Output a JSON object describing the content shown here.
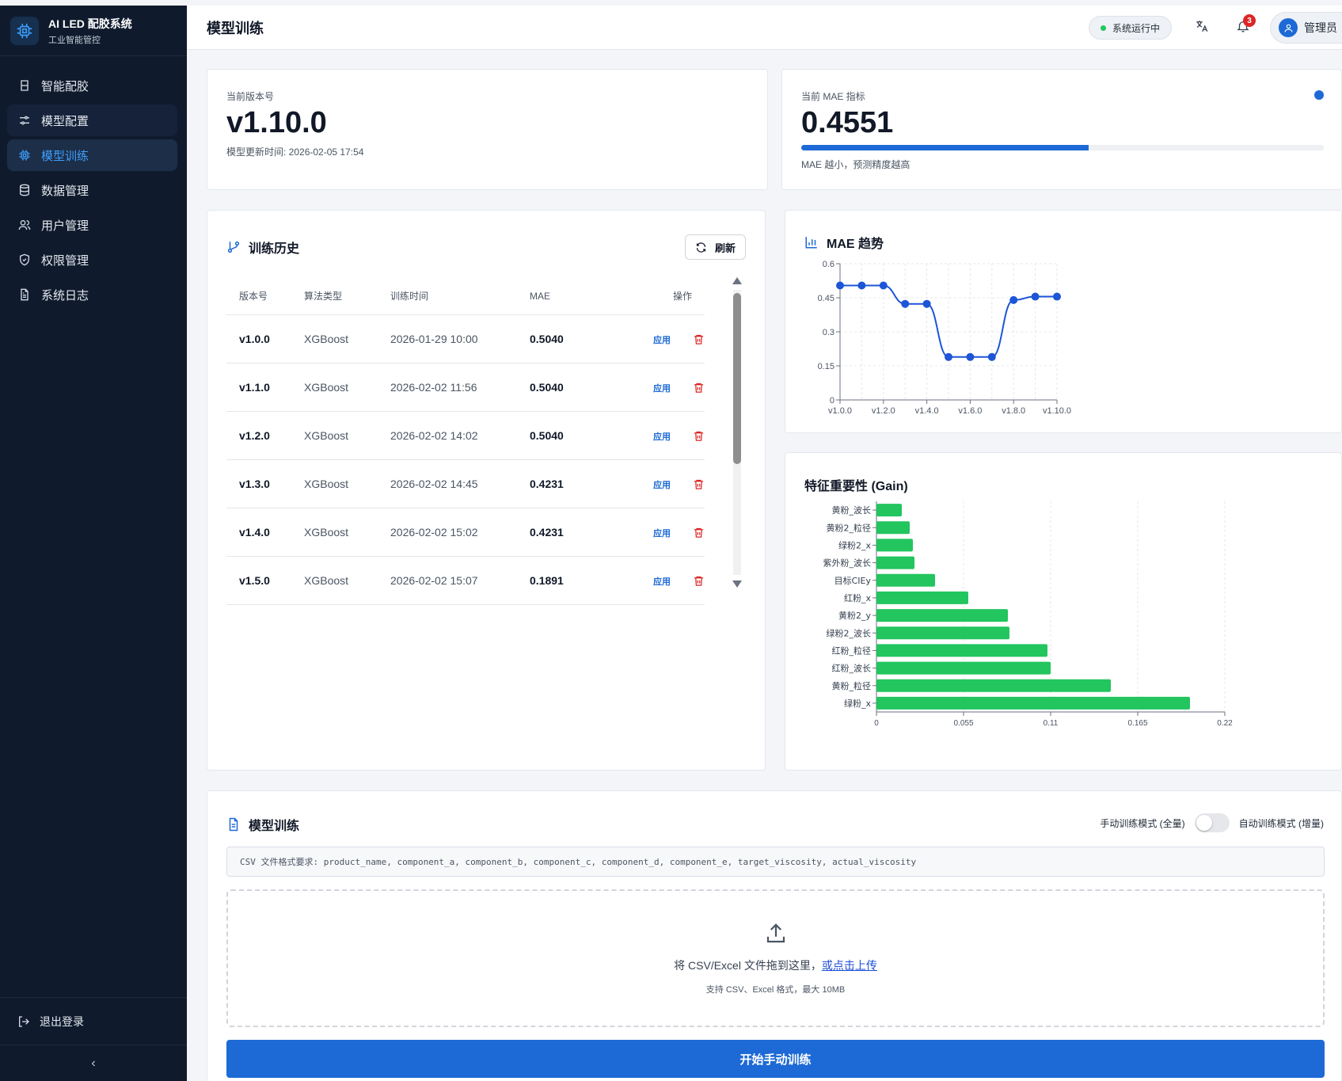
{
  "app": {
    "title": "AI LED 配胶系统",
    "subtitle": "工业智能管控"
  },
  "sidebar": {
    "items": [
      {
        "label": "智能配胶",
        "icon": "cup-icon"
      },
      {
        "label": "模型配置",
        "icon": "sliders-icon"
      },
      {
        "label": "模型训练",
        "icon": "chip-icon"
      },
      {
        "label": "数据管理",
        "icon": "database-icon"
      },
      {
        "label": "用户管理",
        "icon": "users-icon"
      },
      {
        "label": "权限管理",
        "icon": "shield-icon"
      },
      {
        "label": "系统日志",
        "icon": "document-icon"
      }
    ],
    "active": "模型训练",
    "logout_label": "退出登录",
    "collapse_glyph": "‹"
  },
  "header": {
    "title": "模型训练",
    "status": "系统运行中",
    "notification_count": "3",
    "user_label": "管理员"
  },
  "version_card": {
    "label": "当前版本号",
    "value": "v1.10.0",
    "updated": "模型更新时间: 2026-02-05 17:54"
  },
  "mae_card": {
    "label": "当前 MAE 指标",
    "value": "0.4551",
    "progress_fraction": 0.55,
    "hint": "MAE 越小，预测精度越高",
    "accent": "#1d6ad6"
  },
  "history": {
    "title": "训练历史",
    "refresh_label": "刷新",
    "columns": [
      "版本号",
      "算法类型",
      "训练时间",
      "MAE",
      "操作"
    ],
    "apply_label": "应用",
    "rows": [
      {
        "version": "v1.0.0",
        "algo": "XGBoost",
        "time": "2026-01-29 10:00",
        "mae": "0.5040"
      },
      {
        "version": "v1.1.0",
        "algo": "XGBoost",
        "time": "2026-02-02 11:56",
        "mae": "0.5040"
      },
      {
        "version": "v1.2.0",
        "algo": "XGBoost",
        "time": "2026-02-02 14:02",
        "mae": "0.5040"
      },
      {
        "version": "v1.3.0",
        "algo": "XGBoost",
        "time": "2026-02-02 14:45",
        "mae": "0.4231"
      },
      {
        "version": "v1.4.0",
        "algo": "XGBoost",
        "time": "2026-02-02 15:02",
        "mae": "0.4231"
      },
      {
        "version": "v1.5.0",
        "algo": "XGBoost",
        "time": "2026-02-02 15:07",
        "mae": "0.1891"
      }
    ]
  },
  "chart_data": [
    {
      "type": "line",
      "title": "MAE 趋势",
      "x": [
        "v1.0.0",
        "v1.1.0",
        "v1.2.0",
        "v1.3.0",
        "v1.4.0",
        "v1.5.0",
        "v1.6.0",
        "v1.7.0",
        "v1.8.0",
        "v1.9.0",
        "v1.10.0"
      ],
      "x_tick_labels": [
        "v1.0.0",
        "v1.2.0",
        "v1.4.0",
        "v1.6.0",
        "v1.8.0",
        "v1.10.0"
      ],
      "values": [
        0.504,
        0.504,
        0.504,
        0.4231,
        0.4231,
        0.1891,
        0.1891,
        0.1891,
        0.44,
        0.4551,
        0.4551
      ],
      "ylim": [
        0,
        0.6
      ],
      "y_ticks": [
        0,
        0.15,
        0.3,
        0.45,
        0.6
      ],
      "y_tick_labels": [
        "0",
        "0.15",
        "0.3",
        "0.45",
        "0.6"
      ],
      "grid": true,
      "color": "#1d55d8"
    },
    {
      "type": "bar",
      "orientation": "horizontal",
      "title": "特征重要性 (Gain)",
      "categories": [
        "黄粉_波长",
        "黄粉2_粒径",
        "绿粉2_x",
        "紫外粉_波长",
        "目标CIEy",
        "红粉_x",
        "黄粉2_y",
        "绿粉2_波长",
        "红粉_粒径",
        "红粉_波长",
        "黄粉_粒径",
        "绿粉_x"
      ],
      "values": [
        0.016,
        0.021,
        0.023,
        0.024,
        0.037,
        0.058,
        0.083,
        0.084,
        0.108,
        0.11,
        0.148,
        0.198
      ],
      "xlim": [
        0,
        0.22
      ],
      "x_ticks": [
        0,
        0.055,
        0.11,
        0.165,
        0.22
      ],
      "x_tick_labels": [
        "0",
        "0.055",
        "0.11",
        "0.165",
        "0.22"
      ],
      "grid": true,
      "color": "#22c55e"
    }
  ],
  "training": {
    "title": "模型训练",
    "mode_manual": "手动训练模式 (全量)",
    "mode_auto": "自动训练模式 (增量)",
    "csv_hint": "CSV 文件格式要求: product_name, component_a, component_b, component_c, component_d, component_e, target_viscosity, actual_viscosity",
    "drop_text": "将 CSV/Excel 文件拖到这里，",
    "drop_link": "或点击上传",
    "drop_sub": "支持 CSV、Excel 格式，最大 10MB",
    "start_label": "开始手动训练"
  }
}
